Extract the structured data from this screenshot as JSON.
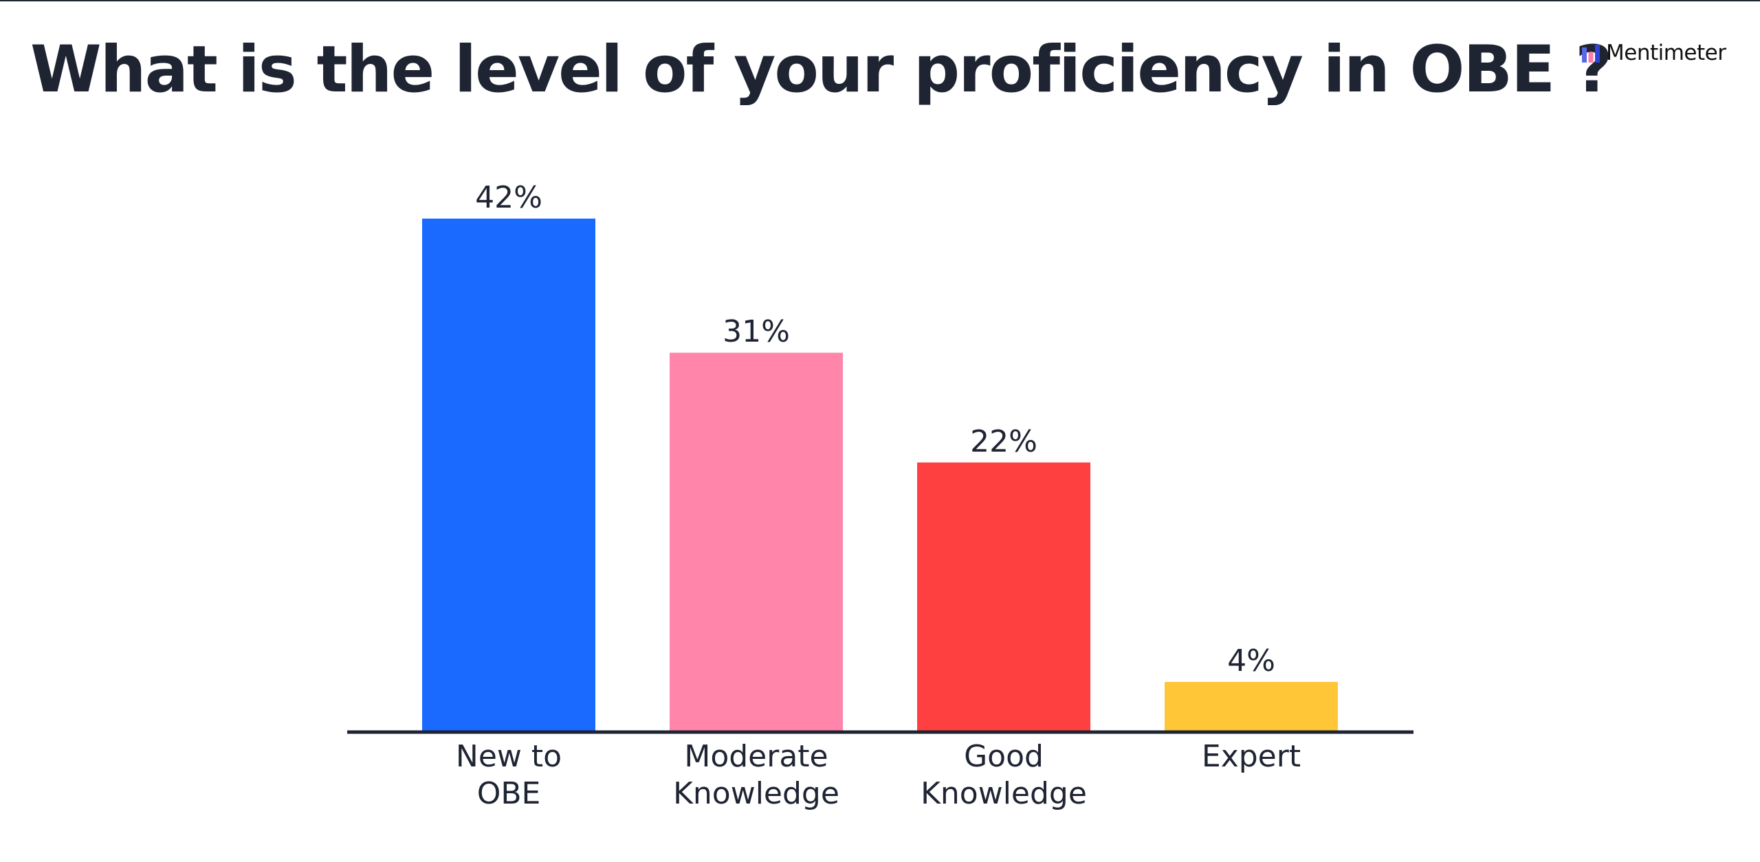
{
  "title": "What is the level of your proficiency in OBE ?",
  "brand": {
    "name": "Mentimeter",
    "logo_icon": "mentimeter-bars-icon"
  },
  "chart_data": {
    "type": "bar",
    "categories": [
      "New to OBE",
      "Moderate Knowledge",
      "Good Knowledge",
      "Expert"
    ],
    "category_label_lines": [
      [
        "New to",
        "OBE"
      ],
      [
        "Moderate",
        "Knowledge"
      ],
      [
        "Good",
        "Knowledge"
      ],
      [
        "Expert"
      ]
    ],
    "values": [
      42,
      31,
      22,
      4
    ],
    "value_labels": [
      "42%",
      "31%",
      "22%",
      "4%"
    ],
    "unit": "%",
    "colors": [
      "#1a6aff",
      "#ff85aa",
      "#ff4040",
      "#ffc638"
    ],
    "ylim": [
      0,
      42
    ],
    "grid": false,
    "legend": "none",
    "xlabel": "",
    "ylabel": ""
  }
}
